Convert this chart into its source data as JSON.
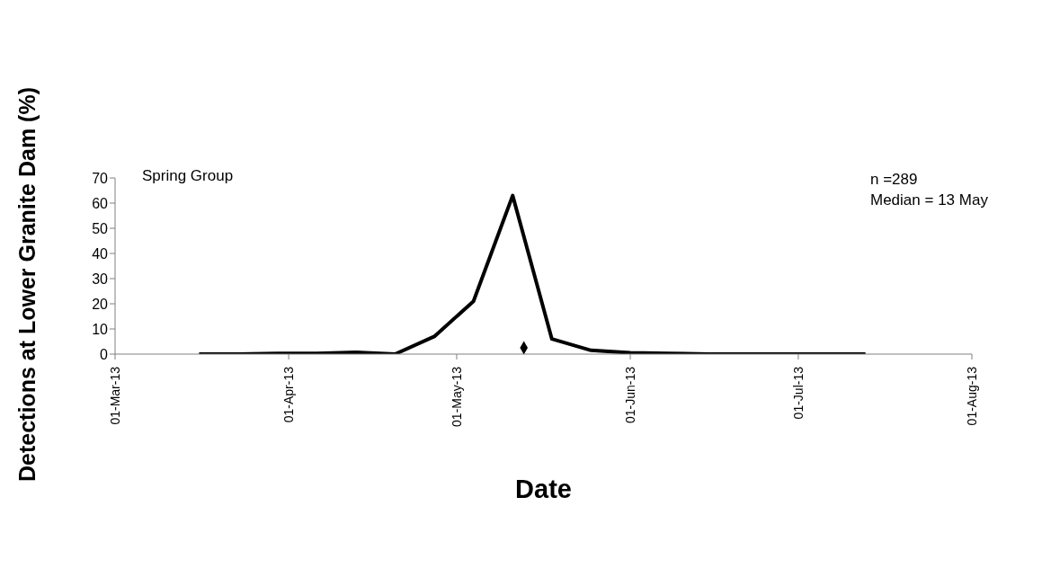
{
  "chart_data": {
    "type": "line",
    "xlabel": "Date",
    "ylabel": "Detections at Lower Granite Dam (%)",
    "annotations": [
      "Spring Group",
      "n =289",
      "Median = 13 May"
    ],
    "series": [
      {
        "color": "#000000",
        "marker": "none",
        "x": [
          "2013-03-16",
          "2013-03-23",
          "2013-03-30",
          "2013-04-06",
          "2013-04-13",
          "2013-04-20",
          "2013-04-27",
          "2013-05-04",
          "2013-05-11",
          "2013-05-18",
          "2013-05-25",
          "2013-06-01",
          "2013-06-08",
          "2013-06-15",
          "2013-06-22",
          "2013-06-29",
          "2013-07-06",
          "2013-07-13"
        ],
        "values": [
          0,
          0,
          0.3,
          0.3,
          0.7,
          0,
          7,
          21,
          63,
          6,
          1.5,
          0.5,
          0.3,
          0,
          0,
          0,
          0,
          0
        ]
      },
      {
        "type": "scatter",
        "color": "#000000",
        "marker": "diamond",
        "x": [
          "2013-05-13"
        ],
        "values": [
          2.5
        ]
      }
    ],
    "xlim": [
      "2013-03-01",
      "2013-08-01"
    ],
    "xticks": [
      {
        "value": "2013-03-01",
        "label": "01-Mar-13"
      },
      {
        "value": "2013-04-01",
        "label": "01-Apr-13"
      },
      {
        "value": "2013-05-01",
        "label": "01-May-13"
      },
      {
        "value": "2013-06-01",
        "label": "01-Jun-13"
      },
      {
        "value": "2013-07-01",
        "label": "01-Jul-13"
      },
      {
        "value": "2013-08-01",
        "label": "01-Aug-13"
      }
    ],
    "ylim": [
      0,
      70
    ],
    "yticks": [
      0,
      10,
      20,
      30,
      40,
      50,
      60,
      70
    ],
    "grid": false
  }
}
